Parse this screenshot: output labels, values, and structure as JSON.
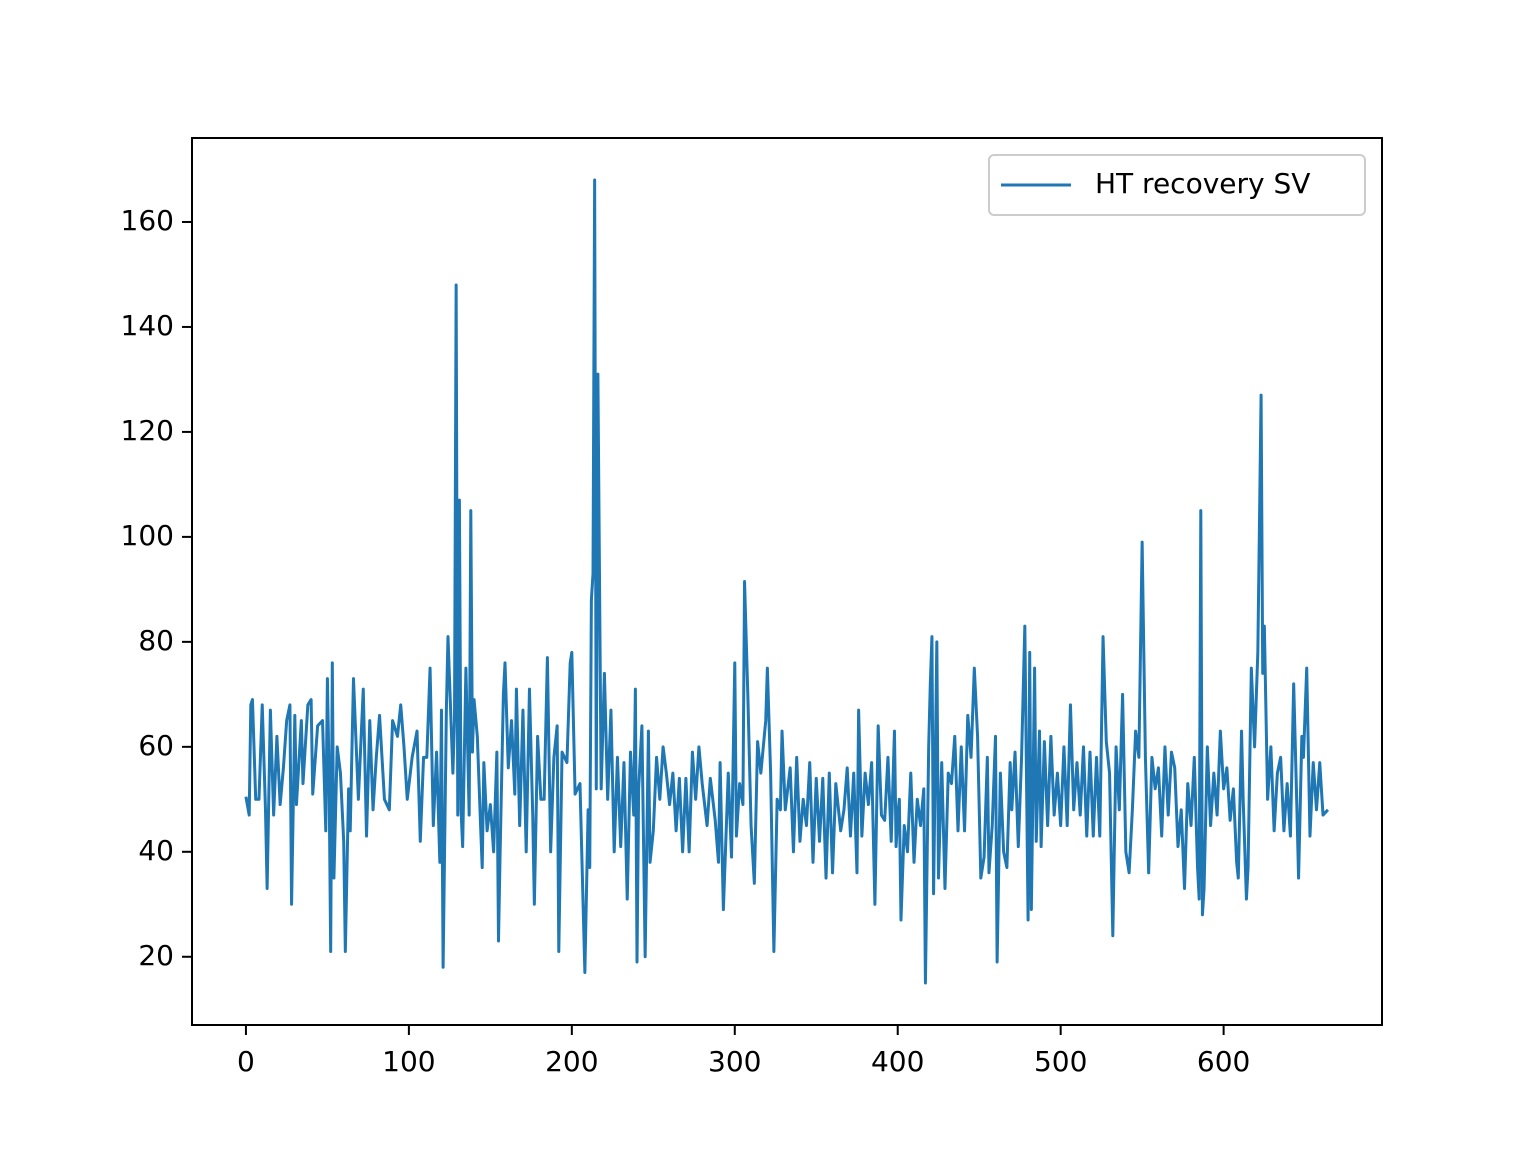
{
  "chart_data": {
    "type": "line",
    "series": [
      {
        "name": "HT recovery SV",
        "color": "#1f77b4",
        "x": [
          0,
          2,
          3,
          4,
          6,
          8,
          10,
          12,
          13,
          15,
          17,
          19,
          21,
          23,
          25,
          27,
          28,
          30,
          31,
          34,
          35,
          38,
          40,
          41,
          44,
          47,
          49,
          50,
          51,
          52,
          53,
          54,
          56,
          58,
          60,
          61,
          63,
          64,
          66,
          69,
          72,
          74,
          76,
          78,
          80,
          82,
          85,
          88,
          90,
          93,
          95,
          97,
          99,
          102,
          105,
          107,
          109,
          111,
          113,
          115,
          117,
          119,
          120,
          121,
          123,
          124,
          127,
          128,
          129,
          130,
          131,
          132,
          133,
          135,
          137,
          138,
          139,
          140,
          142,
          144,
          145,
          146,
          148,
          150,
          152,
          154,
          155,
          156,
          158,
          159,
          161,
          163,
          165,
          166,
          168,
          170,
          172,
          174,
          176,
          177,
          179,
          181,
          183,
          185,
          187,
          189,
          191,
          192,
          194,
          197,
          199,
          200,
          202,
          205,
          208,
          210,
          211,
          212,
          213,
          214,
          215,
          216,
          218,
          220,
          222,
          224,
          226,
          228,
          230,
          232,
          234,
          236,
          238,
          239,
          240,
          241,
          243,
          245,
          247,
          248,
          250,
          252,
          254,
          256,
          258,
          260,
          262,
          264,
          266,
          268,
          270,
          272,
          274,
          276,
          278,
          280,
          283,
          285,
          288,
          290,
          291,
          293,
          296,
          298,
          300,
          301,
          303,
          305,
          306,
          308,
          310,
          312,
          314,
          316,
          319,
          320,
          322,
          324,
          326,
          328,
          329,
          331,
          334,
          336,
          338,
          340,
          342,
          344,
          346,
          348,
          350,
          352,
          354,
          356,
          358,
          360,
          362,
          365,
          367,
          369,
          371,
          373,
          375,
          376,
          378,
          380,
          382,
          384,
          386,
          388,
          390,
          392,
          394,
          396,
          398,
          399,
          400,
          401,
          402,
          404,
          406,
          408,
          410,
          412,
          414,
          416,
          417,
          419,
          420,
          421,
          422,
          424,
          425,
          427,
          429,
          431,
          433,
          435,
          437,
          439,
          441,
          443,
          445,
          447,
          449,
          451,
          453,
          455,
          456,
          458,
          460,
          461,
          463,
          465,
          467,
          469,
          470,
          472,
          474,
          476,
          478,
          480,
          481,
          482,
          484,
          485,
          487,
          488,
          490,
          492,
          494,
          496,
          498,
          500,
          502,
          504,
          506,
          508,
          510,
          512,
          514,
          516,
          518,
          520,
          522,
          524,
          526,
          528,
          530,
          532,
          534,
          536,
          538,
          540,
          542,
          544,
          546,
          548,
          550,
          552,
          554,
          556,
          558,
          560,
          562,
          564,
          566,
          568,
          570,
          572,
          574,
          576,
          578,
          580,
          582,
          584,
          585,
          586,
          587,
          588,
          590,
          592,
          594,
          596,
          598,
          600,
          602,
          604,
          606,
          608,
          609,
          611,
          612,
          614,
          615,
          617,
          619,
          621,
          623,
          624,
          625,
          627,
          629,
          631,
          633,
          635,
          637,
          639,
          641,
          643,
          645,
          646,
          648,
          649,
          651,
          653,
          655,
          657,
          659,
          661,
          664
        ],
        "values": [
          50.5,
          47,
          68,
          69,
          50,
          50,
          68,
          48,
          33,
          67,
          47,
          62,
          49,
          56,
          65,
          68,
          30,
          66,
          49,
          65,
          53,
          68,
          69,
          51,
          64,
          65,
          44,
          73,
          55,
          21,
          76,
          35,
          60,
          55,
          42,
          21,
          52,
          44,
          73,
          50,
          71,
          43,
          65,
          48,
          58,
          66,
          50,
          48,
          65,
          62,
          68,
          60,
          50,
          58,
          63,
          42,
          58,
          58,
          75,
          45,
          59,
          38,
          67,
          18,
          67,
          81,
          55,
          65,
          148,
          47,
          107,
          48,
          41,
          75,
          47,
          105,
          59,
          69,
          62,
          45,
          37,
          57,
          44,
          49,
          40,
          59,
          23,
          40,
          70,
          76,
          56,
          65,
          51,
          71,
          45,
          67,
          40,
          71,
          47,
          30,
          62,
          50,
          50,
          77,
          40,
          58,
          64,
          21,
          59,
          57,
          76,
          78,
          51,
          53,
          17,
          48,
          37,
          88,
          93,
          168,
          52,
          131,
          52,
          74,
          50,
          67,
          40,
          58,
          41,
          57,
          31,
          59,
          47,
          71,
          19,
          52,
          64,
          20,
          63,
          38,
          44,
          58,
          50,
          60,
          55,
          49,
          55,
          44,
          54,
          40,
          54,
          40,
          59,
          50,
          60,
          53,
          45,
          54,
          46,
          38,
          57,
          29,
          55,
          39,
          76,
          43,
          53,
          49,
          91.5,
          70,
          45,
          34,
          61,
          55,
          65,
          75,
          55,
          21,
          50,
          48,
          63,
          48,
          56,
          40,
          58,
          42,
          50,
          45,
          57,
          38,
          54,
          42,
          54,
          35,
          55,
          36,
          53,
          44,
          48,
          56,
          43,
          55,
          36,
          67,
          43,
          55,
          49,
          57,
          30,
          64,
          47,
          46,
          58,
          42,
          63,
          41,
          47,
          50,
          27,
          45,
          40,
          55,
          38,
          50,
          45,
          52,
          15,
          60,
          72,
          81,
          32,
          80,
          35,
          57,
          33,
          55,
          53,
          62,
          44,
          60,
          44,
          66,
          58,
          75,
          62,
          35,
          39,
          58,
          36,
          45,
          62,
          19,
          55,
          40,
          37,
          57,
          48,
          59,
          41,
          58,
          83,
          27,
          78,
          29,
          75,
          42,
          63,
          41,
          61,
          45,
          62,
          47,
          55,
          45,
          60,
          45,
          68,
          48,
          57,
          47,
          60,
          43,
          59,
          43,
          58,
          43,
          81,
          61,
          55,
          24,
          60,
          48,
          70,
          40,
          36,
          48,
          63,
          58,
          99,
          58,
          36,
          58,
          52,
          56,
          43,
          60,
          47,
          59,
          56,
          41,
          48,
          33,
          53,
          45,
          58,
          37,
          31,
          105,
          28,
          33,
          60,
          45,
          55,
          47,
          63,
          52,
          56,
          46,
          52,
          38,
          35,
          63,
          50,
          31,
          37,
          75,
          60,
          78,
          127,
          74,
          83,
          50,
          60,
          44,
          55,
          58,
          44,
          53,
          43,
          72,
          48,
          35,
          62,
          58,
          75,
          43,
          57,
          48,
          57,
          47,
          48
        ]
      }
    ],
    "xlim": [
      -33.1,
      697.2
    ],
    "ylim": [
      7,
      176
    ],
    "xticks": [
      0,
      100,
      200,
      300,
      400,
      500,
      600
    ],
    "yticks": [
      20,
      40,
      60,
      80,
      100,
      120,
      140,
      160
    ],
    "legend": "upper right",
    "grid": false
  }
}
